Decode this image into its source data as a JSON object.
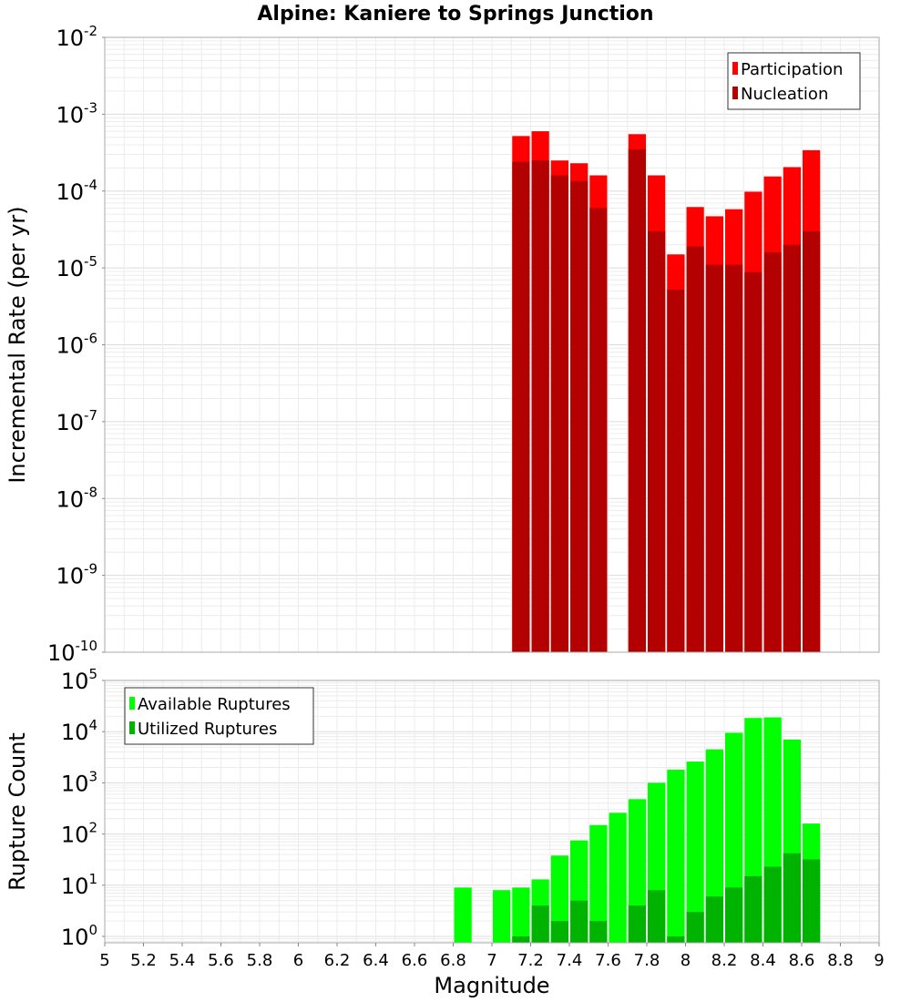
{
  "chart_data": [
    {
      "type": "bar",
      "title": "Alpine: Kaniere to Springs Junction",
      "xlabel": "",
      "ylabel": "Incremental Rate (per yr)",
      "yscale": "log",
      "ylim": [
        1e-10,
        0.01
      ],
      "xlim": [
        5,
        9
      ],
      "grid": true,
      "legend_position": "top-right",
      "y_tick_bases": [
        "10",
        "10",
        "10",
        "10",
        "10",
        "10",
        "10",
        "10",
        "10"
      ],
      "y_tick_exponents": [
        "-2",
        "-3",
        "-4",
        "-5",
        "-6",
        "-7",
        "-8",
        "-9",
        "-10"
      ],
      "x": [
        7.15,
        7.25,
        7.35,
        7.45,
        7.55,
        7.75,
        7.85,
        7.95,
        8.05,
        8.15,
        8.25,
        8.35,
        8.45,
        8.55,
        8.65
      ],
      "series": [
        {
          "name": "Participation",
          "color": "#ff0000",
          "values": [
            0.00052,
            0.0006,
            0.00025,
            0.00023,
            0.00016,
            0.00055,
            0.00016,
            1.5e-05,
            6.2e-05,
            4.7e-05,
            5.8e-05,
            9.8e-05,
            0.000155,
            0.000205,
            0.00034
          ]
        },
        {
          "name": "Nucleation",
          "color": "#b30000",
          "values": [
            0.00024,
            0.00025,
            0.00016,
            0.000135,
            6e-05,
            0.00035,
            3e-05,
            5.2e-06,
            1.9e-05,
            1.1e-05,
            1.1e-05,
            8.8e-06,
            1.6e-05,
            2e-05,
            3e-05
          ]
        }
      ]
    },
    {
      "type": "bar",
      "title": "",
      "xlabel": "Magnitude",
      "ylabel": "Rupture Count",
      "yscale": "log",
      "ylim": [
        0.75,
        100000
      ],
      "xlim": [
        5,
        9
      ],
      "grid": true,
      "legend_position": "top-left",
      "y_tick_bases": [
        "10",
        "10",
        "10",
        "10",
        "10",
        "10"
      ],
      "y_tick_exponents": [
        "5",
        "4",
        "3",
        "2",
        "1",
        "0"
      ],
      "x_ticks": [
        "5",
        "5.2",
        "5.4",
        "5.6",
        "5.8",
        "6",
        "6.2",
        "6.4",
        "6.6",
        "6.8",
        "7",
        "7.2",
        "7.4",
        "7.6",
        "7.8",
        "8",
        "8.2",
        "8.4",
        "8.6",
        "8.8",
        "9"
      ],
      "x": [
        6.85,
        7.05,
        7.15,
        7.25,
        7.35,
        7.45,
        7.55,
        7.65,
        7.75,
        7.85,
        7.95,
        8.05,
        8.15,
        8.25,
        8.35,
        8.45,
        8.55,
        8.65
      ],
      "series": [
        {
          "name": "Available Ruptures",
          "color": "#00ff00",
          "values": [
            9,
            8,
            9,
            13,
            38,
            75,
            150,
            260,
            480,
            1000,
            1800,
            2600,
            4500,
            9500,
            18500,
            19000,
            7000,
            160
          ]
        },
        {
          "name": "Utilized Ruptures",
          "color": "#00b300",
          "values": [
            0,
            0,
            1,
            4,
            2,
            5,
            2,
            0,
            4,
            8,
            1,
            3,
            6,
            9,
            15,
            23,
            42,
            32
          ]
        }
      ]
    }
  ]
}
